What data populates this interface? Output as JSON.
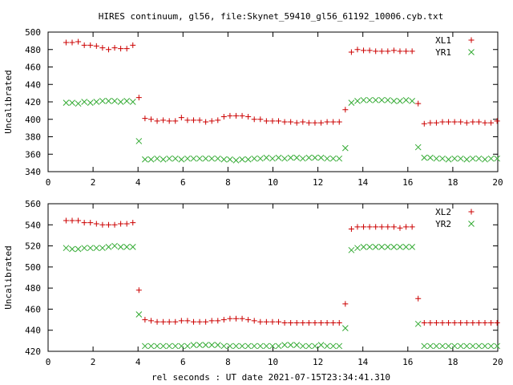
{
  "title": "HIRES continuum, gl56, file:Skynet_59410_gl56_61192_10006.cyb.txt",
  "xlabel": "rel seconds : UT date 2021-07-15T23:34:41.310",
  "chart_data": [
    {
      "type": "scatter",
      "ylabel": "Uncalibrated",
      "xlim": [
        0,
        20
      ],
      "ylim": [
        340,
        500
      ],
      "xticks": [
        0,
        2,
        4,
        6,
        8,
        10,
        12,
        14,
        16,
        18,
        20
      ],
      "yticks": [
        340,
        360,
        380,
        400,
        420,
        440,
        460,
        480,
        500
      ],
      "legend_position": "top-right",
      "grid": false,
      "series": [
        {
          "name": "XL1",
          "marker": "plus",
          "color": "#cc0000",
          "x": [
            0.8,
            1.07,
            1.34,
            1.61,
            1.88,
            2.15,
            2.42,
            2.69,
            2.96,
            3.23,
            3.5,
            3.77,
            4.04,
            4.31,
            4.58,
            4.85,
            5.12,
            5.39,
            5.66,
            5.93,
            6.2,
            6.47,
            6.74,
            7.01,
            7.28,
            7.55,
            7.82,
            8.09,
            8.36,
            8.63,
            8.9,
            9.17,
            9.44,
            9.71,
            9.98,
            10.25,
            10.52,
            10.79,
            11.06,
            11.33,
            11.6,
            11.87,
            12.14,
            12.41,
            12.68,
            12.95,
            13.22,
            13.49,
            13.76,
            14.03,
            14.3,
            14.57,
            14.84,
            15.11,
            15.38,
            15.65,
            15.92,
            16.19,
            16.46,
            16.73,
            17.0,
            17.27,
            17.54,
            17.81,
            18.08,
            18.35,
            18.62,
            18.89,
            19.16,
            19.43,
            19.7,
            19.97
          ],
          "y": [
            488,
            488,
            489,
            485,
            485,
            484,
            482,
            480,
            482,
            481,
            481,
            485,
            425,
            401,
            400,
            398,
            399,
            398,
            398,
            402,
            399,
            399,
            399,
            397,
            398,
            399,
            403,
            404,
            404,
            404,
            403,
            400,
            400,
            398,
            398,
            398,
            397,
            397,
            396,
            397,
            396,
            396,
            396,
            397,
            397,
            397,
            411,
            477,
            480,
            479,
            479,
            478,
            478,
            478,
            479,
            478,
            478,
            478,
            418,
            395,
            396,
            396,
            397,
            397,
            397,
            397,
            396,
            397,
            397,
            396,
            396,
            398
          ]
        },
        {
          "name": "YR1",
          "marker": "cross",
          "color": "#33aa33",
          "x": [
            0.8,
            1.07,
            1.34,
            1.61,
            1.88,
            2.15,
            2.42,
            2.69,
            2.96,
            3.23,
            3.5,
            3.77,
            4.04,
            4.31,
            4.58,
            4.85,
            5.12,
            5.39,
            5.66,
            5.93,
            6.2,
            6.47,
            6.74,
            7.01,
            7.28,
            7.55,
            7.82,
            8.09,
            8.36,
            8.63,
            8.9,
            9.17,
            9.44,
            9.71,
            9.98,
            10.25,
            10.52,
            10.79,
            11.06,
            11.33,
            11.6,
            11.87,
            12.14,
            12.41,
            12.68,
            12.95,
            13.22,
            13.49,
            13.76,
            14.03,
            14.3,
            14.57,
            14.84,
            15.11,
            15.38,
            15.65,
            15.92,
            16.19,
            16.46,
            16.73,
            17.0,
            17.27,
            17.54,
            17.81,
            18.08,
            18.35,
            18.62,
            18.89,
            19.16,
            19.43,
            19.7,
            19.97
          ],
          "y": [
            419,
            419,
            418,
            420,
            419,
            420,
            421,
            421,
            421,
            420,
            421,
            420,
            375,
            354,
            354,
            355,
            354,
            355,
            355,
            354,
            355,
            355,
            355,
            355,
            355,
            355,
            354,
            354,
            353,
            354,
            354,
            355,
            355,
            356,
            355,
            356,
            355,
            356,
            356,
            355,
            356,
            356,
            356,
            355,
            355,
            355,
            367,
            419,
            421,
            422,
            422,
            422,
            422,
            422,
            421,
            421,
            422,
            421,
            368,
            356,
            356,
            355,
            355,
            354,
            355,
            355,
            354,
            355,
            355,
            354,
            355,
            355
          ]
        }
      ]
    },
    {
      "type": "scatter",
      "ylabel": "Uncalibrated",
      "xlim": [
        0,
        20
      ],
      "ylim": [
        420,
        560
      ],
      "xticks": [
        0,
        2,
        4,
        6,
        8,
        10,
        12,
        14,
        16,
        18,
        20
      ],
      "yticks": [
        420,
        440,
        460,
        480,
        500,
        520,
        540,
        560
      ],
      "legend_position": "top-right",
      "grid": false,
      "series": [
        {
          "name": "XL2",
          "marker": "plus",
          "color": "#cc0000",
          "x": [
            0.8,
            1.07,
            1.34,
            1.61,
            1.88,
            2.15,
            2.42,
            2.69,
            2.96,
            3.23,
            3.5,
            3.77,
            4.04,
            4.31,
            4.58,
            4.85,
            5.12,
            5.39,
            5.66,
            5.93,
            6.2,
            6.47,
            6.74,
            7.01,
            7.28,
            7.55,
            7.82,
            8.09,
            8.36,
            8.63,
            8.9,
            9.17,
            9.44,
            9.71,
            9.98,
            10.25,
            10.52,
            10.79,
            11.06,
            11.33,
            11.6,
            11.87,
            12.14,
            12.41,
            12.68,
            12.95,
            13.22,
            13.49,
            13.76,
            14.03,
            14.3,
            14.57,
            14.84,
            15.11,
            15.38,
            15.65,
            15.92,
            16.19,
            16.46,
            16.73,
            17.0,
            17.27,
            17.54,
            17.81,
            18.08,
            18.35,
            18.62,
            18.89,
            19.16,
            19.43,
            19.7,
            19.97
          ],
          "y": [
            544,
            544,
            544,
            542,
            542,
            541,
            540,
            540,
            540,
            541,
            541,
            542,
            478,
            450,
            449,
            448,
            448,
            448,
            448,
            449,
            449,
            448,
            448,
            448,
            449,
            449,
            450,
            451,
            451,
            451,
            450,
            449,
            448,
            448,
            448,
            448,
            447,
            447,
            447,
            447,
            447,
            447,
            447,
            447,
            447,
            447,
            465,
            536,
            538,
            538,
            538,
            538,
            538,
            538,
            538,
            537,
            538,
            538,
            470,
            447,
            447,
            447,
            447,
            447,
            447,
            447,
            447,
            447,
            447,
            447,
            447,
            447
          ]
        },
        {
          "name": "YR2",
          "marker": "cross",
          "color": "#33aa33",
          "x": [
            0.8,
            1.07,
            1.34,
            1.61,
            1.88,
            2.15,
            2.42,
            2.69,
            2.96,
            3.23,
            3.5,
            3.77,
            4.04,
            4.31,
            4.58,
            4.85,
            5.12,
            5.39,
            5.66,
            5.93,
            6.2,
            6.47,
            6.74,
            7.01,
            7.28,
            7.55,
            7.82,
            8.09,
            8.36,
            8.63,
            8.9,
            9.17,
            9.44,
            9.71,
            9.98,
            10.25,
            10.52,
            10.79,
            11.06,
            11.33,
            11.6,
            11.87,
            12.14,
            12.41,
            12.68,
            12.95,
            13.22,
            13.49,
            13.76,
            14.03,
            14.3,
            14.57,
            14.84,
            15.11,
            15.38,
            15.65,
            15.92,
            16.19,
            16.46,
            16.73,
            17.0,
            17.27,
            17.54,
            17.81,
            18.08,
            18.35,
            18.62,
            18.89,
            19.16,
            19.43,
            19.7,
            19.97
          ],
          "y": [
            518,
            517,
            517,
            518,
            518,
            518,
            518,
            519,
            520,
            519,
            519,
            519,
            455,
            425,
            425,
            425,
            425,
            425,
            425,
            425,
            425,
            426,
            426,
            426,
            426,
            426,
            425,
            425,
            425,
            425,
            425,
            425,
            425,
            425,
            425,
            425,
            426,
            426,
            426,
            425,
            425,
            425,
            426,
            425,
            425,
            425,
            442,
            516,
            518,
            519,
            519,
            519,
            519,
            519,
            519,
            519,
            519,
            519,
            446,
            425,
            425,
            425,
            425,
            425,
            425,
            425,
            425,
            425,
            425,
            425,
            425,
            425
          ]
        }
      ]
    }
  ]
}
